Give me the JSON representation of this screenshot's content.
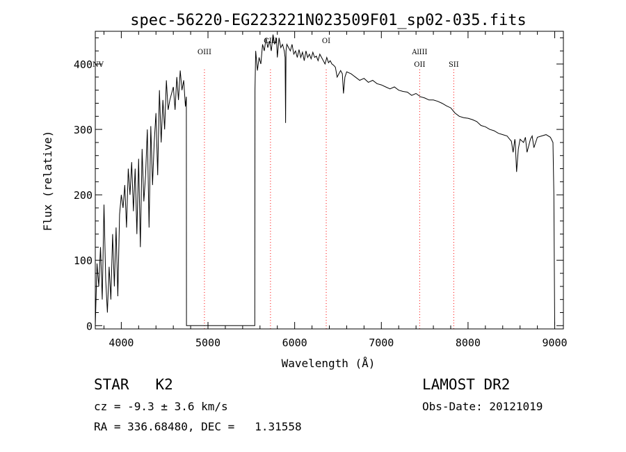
{
  "chart_data": {
    "type": "line",
    "title": "spec-56220-EG223221N023509F01_sp02-035.fits",
    "xlabel": "Wavelength (Å)",
    "ylabel": "Flux (relative)",
    "xlim": [
      3700,
      9100
    ],
    "ylim": [
      -5,
      450
    ],
    "xticks": [
      4000,
      5000,
      6000,
      7000,
      8000,
      9000
    ],
    "xtick_labels": [
      "4000",
      "5000",
      "6000",
      "7000",
      "8000",
      "9000"
    ],
    "yticks": [
      0,
      100,
      200,
      300,
      400
    ],
    "ytick_labels": [
      "0",
      "100",
      "200",
      "300",
      "400"
    ],
    "grid": false,
    "line_color": "#000000",
    "marker_color": "#ff0000",
    "series": [
      {
        "x": [
          3700,
          3720,
          3740,
          3760,
          3780,
          3800,
          3820,
          3840,
          3860,
          3880,
          3900,
          3920,
          3940,
          3960,
          3980,
          4000,
          4020,
          4040,
          4060,
          4080,
          4100,
          4120,
          4140,
          4160,
          4180,
          4200,
          4220,
          4240,
          4260,
          4280,
          4300,
          4320,
          4340,
          4360,
          4380,
          4400,
          4420,
          4440,
          4460,
          4480,
          4500,
          4520,
          4540,
          4560,
          4580,
          4600,
          4620,
          4640,
          4660,
          4680,
          4700,
          4720,
          4740,
          4750,
          4752,
          5540,
          5542,
          5550,
          5570,
          5590,
          5610,
          5630,
          5650,
          5670,
          5690,
          5710,
          5730,
          5750,
          5770,
          5790,
          5800,
          5820,
          5840,
          5860,
          5880,
          5890,
          5895,
          5900,
          5910,
          5930,
          5950,
          5970,
          5990,
          6010,
          6030,
          6050,
          6070,
          6090,
          6110,
          6130,
          6150,
          6170,
          6190,
          6210,
          6230,
          6250,
          6270,
          6290,
          6310,
          6330,
          6350,
          6370,
          6390,
          6410,
          6430,
          6450,
          6470,
          6490,
          6510,
          6530,
          6550,
          6563,
          6580,
          6600,
          6650,
          6700,
          6750,
          6800,
          6850,
          6900,
          6950,
          7000,
          7050,
          7100,
          7150,
          7200,
          7250,
          7300,
          7350,
          7400,
          7450,
          7500,
          7550,
          7600,
          7650,
          7700,
          7750,
          7800,
          7850,
          7900,
          7950,
          8000,
          8050,
          8100,
          8150,
          8200,
          8250,
          8300,
          8350,
          8400,
          8450,
          8480,
          8500,
          8520,
          8540,
          8545,
          8560,
          8580,
          8600,
          8640,
          8662,
          8680,
          8720,
          8740,
          8760,
          8800,
          8850,
          8900,
          8950,
          8980,
          8990,
          9000
        ],
        "y": [
          0,
          95,
          60,
          120,
          40,
          185,
          70,
          20,
          90,
          40,
          140,
          60,
          150,
          45,
          170,
          200,
          180,
          215,
          150,
          240,
          200,
          250,
          175,
          240,
          140,
          255,
          120,
          270,
          190,
          230,
          300,
          150,
          305,
          215,
          280,
          325,
          230,
          360,
          280,
          345,
          300,
          375,
          330,
          345,
          355,
          365,
          330,
          380,
          345,
          390,
          360,
          375,
          335,
          350,
          0,
          0,
          360,
          420,
          390,
          410,
          400,
          430,
          420,
          440,
          425,
          435,
          420,
          445,
          430,
          440,
          410,
          440,
          425,
          430,
          420,
          410,
          310,
          420,
          430,
          425,
          420,
          430,
          415,
          420,
          410,
          422,
          410,
          418,
          405,
          420,
          410,
          415,
          408,
          418,
          410,
          412,
          405,
          415,
          410,
          405,
          400,
          410,
          402,
          405,
          400,
          398,
          395,
          380,
          385,
          390,
          385,
          355,
          380,
          388,
          385,
          380,
          375,
          378,
          372,
          375,
          370,
          368,
          365,
          362,
          365,
          360,
          358,
          357,
          352,
          355,
          350,
          348,
          345,
          345,
          343,
          340,
          336,
          333,
          325,
          320,
          318,
          317,
          315,
          312,
          306,
          304,
          300,
          298,
          294,
          292,
          290,
          285,
          282,
          265,
          285,
          280,
          235,
          270,
          285,
          280,
          288,
          265,
          285,
          290,
          272,
          288,
          290,
          292,
          288,
          280,
          200,
          0
        ]
      }
    ],
    "line_labels": [
      {
        "label": "NV",
        "x": 3740
      },
      {
        "label": "OIII",
        "x": 4959
      },
      {
        "label": "CIII",
        "x": 5721
      },
      {
        "label": "OI",
        "x": 6364
      },
      {
        "label": "AlIII",
        "x": 7442
      },
      {
        "label": "OII",
        "x": 7442
      },
      {
        "label": "SII",
        "x": 7835
      }
    ]
  },
  "info": {
    "object_type": "STAR   K2",
    "cz_line": "cz = -9.3 ± 3.6 km/s",
    "radec_line": "RA = 336.68480, DEC =   1.31558",
    "survey": "LAMOST DR2",
    "obs_date": "Obs-Date: 20121019"
  }
}
